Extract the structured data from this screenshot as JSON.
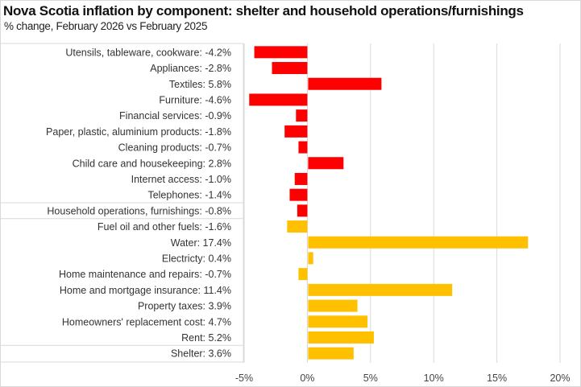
{
  "chart_data": {
    "type": "bar",
    "orientation": "horizontal",
    "title": "Nova Scotia inflation by component: shelter and household operations/furnishings",
    "subtitle": "% change, February 2026 vs February 2025",
    "xlabel": "",
    "ylabel": "",
    "xlim": [
      -5,
      20
    ],
    "xticks": [
      -5,
      0,
      5,
      10,
      15,
      20
    ],
    "xtick_labels": [
      "-5%",
      "0%",
      "5%",
      "10%",
      "15%",
      "20%"
    ],
    "grid": true,
    "legend": "none",
    "colors": {
      "household": "#ff0000",
      "shelter": "#ffc000"
    },
    "categories": [
      "Utensils, tableware, cookware",
      "Appliances",
      "Textiles",
      "Furniture",
      "Financial services",
      "Paper, plastic, aluminium products",
      "Cleaning products",
      "Child care and housekeeping",
      "Internet access",
      "Telephones",
      "Household operations, furnishings",
      "Fuel oil and other fuels",
      "Water",
      "Electricty",
      "Home maintenance and repairs",
      "Home and mortgage insurance",
      "Property taxes",
      "Homeowners' replacement cost",
      "Rent",
      "Shelter"
    ],
    "row_labels": [
      "Utensils, tableware, cookware:  -4.2%",
      "Appliances:  -2.8%",
      "Textiles:  5.8%",
      "Furniture:  -4.6%",
      "Financial services:  -0.9%",
      "Paper, plastic, aluminium products:  -1.8%",
      "Cleaning products:  -0.7%",
      "Child care and housekeeping:  2.8%",
      "Internet access:  -1.0%",
      "Telephones:  -1.4%",
      "Household operations, furnishings:  -0.8%",
      "Fuel oil and other fuels:  -1.6%",
      "Water:  17.4%",
      "Electricty:  0.4%",
      "Home maintenance and repairs:  -0.7%",
      "Home and mortgage insurance:  11.4%",
      "Property taxes:  3.9%",
      "Homeowners' replacement cost:  4.7%",
      "Rent:  5.2%",
      "Shelter:  3.6%"
    ],
    "values": [
      -4.2,
      -2.8,
      5.8,
      -4.6,
      -0.9,
      -1.8,
      -0.7,
      2.8,
      -1.0,
      -1.4,
      -0.8,
      -1.6,
      17.4,
      0.4,
      -0.7,
      11.4,
      3.9,
      4.7,
      5.2,
      3.6
    ],
    "groups": [
      "household",
      "household",
      "household",
      "household",
      "household",
      "household",
      "household",
      "household",
      "household",
      "household",
      "household",
      "shelter",
      "shelter",
      "shelter",
      "shelter",
      "shelter",
      "shelter",
      "shelter",
      "shelter",
      "shelter"
    ],
    "separator_after_rows": [
      9,
      10,
      18
    ]
  }
}
